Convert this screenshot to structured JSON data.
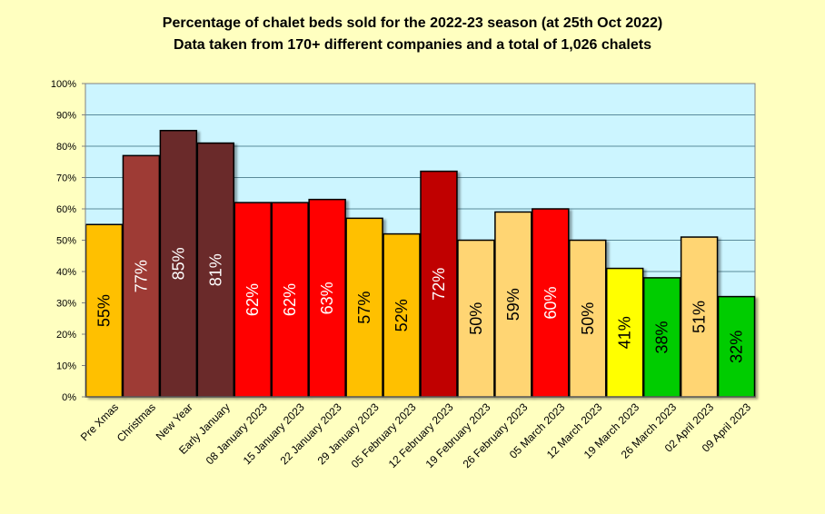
{
  "chart_data": {
    "type": "bar",
    "title": "Percentage of chalet beds sold for the 2022-23 season (at 25th Oct 2022)",
    "subtitle": "Data taken from 170+ different companies and a total of 1,026 chalets",
    "xlabel": "",
    "ylabel": "",
    "ylim": [
      0,
      100
    ],
    "yticks": [
      "0%",
      "10%",
      "20%",
      "30%",
      "40%",
      "50%",
      "60%",
      "70%",
      "80%",
      "90%",
      "100%"
    ],
    "grid": true,
    "legend": "none",
    "categories": [
      "Pre Xmas",
      "Christmas",
      "New Year",
      "Early January",
      "08 January 2023",
      "15 January 2023",
      "22 January 2023",
      "29 January 2023",
      "05 February 2023",
      "12 February 2023",
      "19 February 2023",
      "26 February 2023",
      "05 March 2023",
      "12 March 2023",
      "19 March 2023",
      "26 March 2023",
      "02 April 2023",
      "09 April 2023"
    ],
    "values": [
      55,
      77,
      85,
      81,
      62,
      62,
      63,
      57,
      52,
      72,
      50,
      59,
      60,
      50,
      41,
      38,
      51,
      32
    ],
    "data_labels": [
      "55%",
      "77%",
      "85%",
      "81%",
      "62%",
      "62%",
      "63%",
      "57%",
      "52%",
      "72%",
      "50%",
      "59%",
      "60%",
      "50%",
      "41%",
      "38%",
      "51%",
      "32%"
    ],
    "bar_colors": [
      "#ffc000",
      "#9e3a36",
      "#6b2a2a",
      "#6b2a2a",
      "#ff0000",
      "#ff0000",
      "#ff0000",
      "#ffc000",
      "#ffc000",
      "#c00000",
      "#ffd573",
      "#ffd573",
      "#ff0000",
      "#ffd573",
      "#ffff00",
      "#00cc00",
      "#ffd573",
      "#00cc00"
    ],
    "label_colors": [
      "#000000",
      "#ffffff",
      "#ffffff",
      "#ffffff",
      "#ffffff",
      "#ffffff",
      "#ffffff",
      "#000000",
      "#000000",
      "#ffffff",
      "#000000",
      "#000000",
      "#ffffff",
      "#000000",
      "#000000",
      "#000000",
      "#000000",
      "#000000"
    ],
    "plot_background": "#ccf5ff",
    "page_background": "#ffffc0"
  }
}
